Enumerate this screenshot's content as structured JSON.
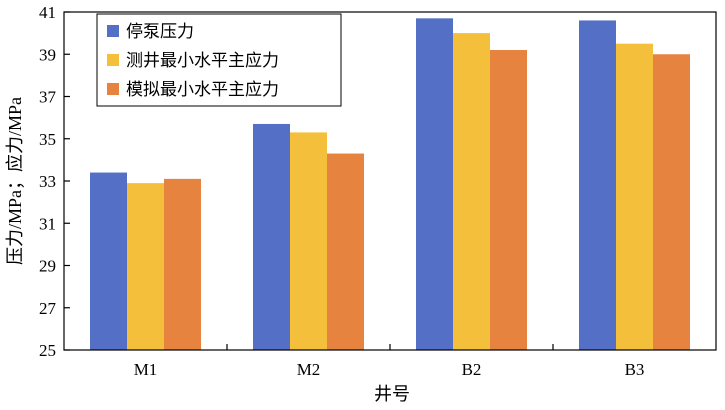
{
  "chart_data": {
    "type": "bar",
    "title": "",
    "xlabel": "井号",
    "ylabel": "压力/MPa；应力/MPa",
    "categories": [
      "M1",
      "M2",
      "B2",
      "B3"
    ],
    "ylim": [
      25,
      41
    ],
    "yticks": [
      25,
      27,
      29,
      31,
      33,
      35,
      37,
      39,
      41
    ],
    "grid": false,
    "legend_position": "top-left",
    "series": [
      {
        "name": "停泵压力",
        "color": "#5470c6",
        "values": [
          33.4,
          35.7,
          40.7,
          40.6
        ]
      },
      {
        "name": "测井最小水平主应力",
        "color": "#f4bf3a",
        "values": [
          32.9,
          35.3,
          40.0,
          39.5
        ]
      },
      {
        "name": "模拟最小水平主应力",
        "color": "#e6843f",
        "values": [
          33.1,
          34.3,
          39.2,
          39.0
        ]
      }
    ]
  }
}
